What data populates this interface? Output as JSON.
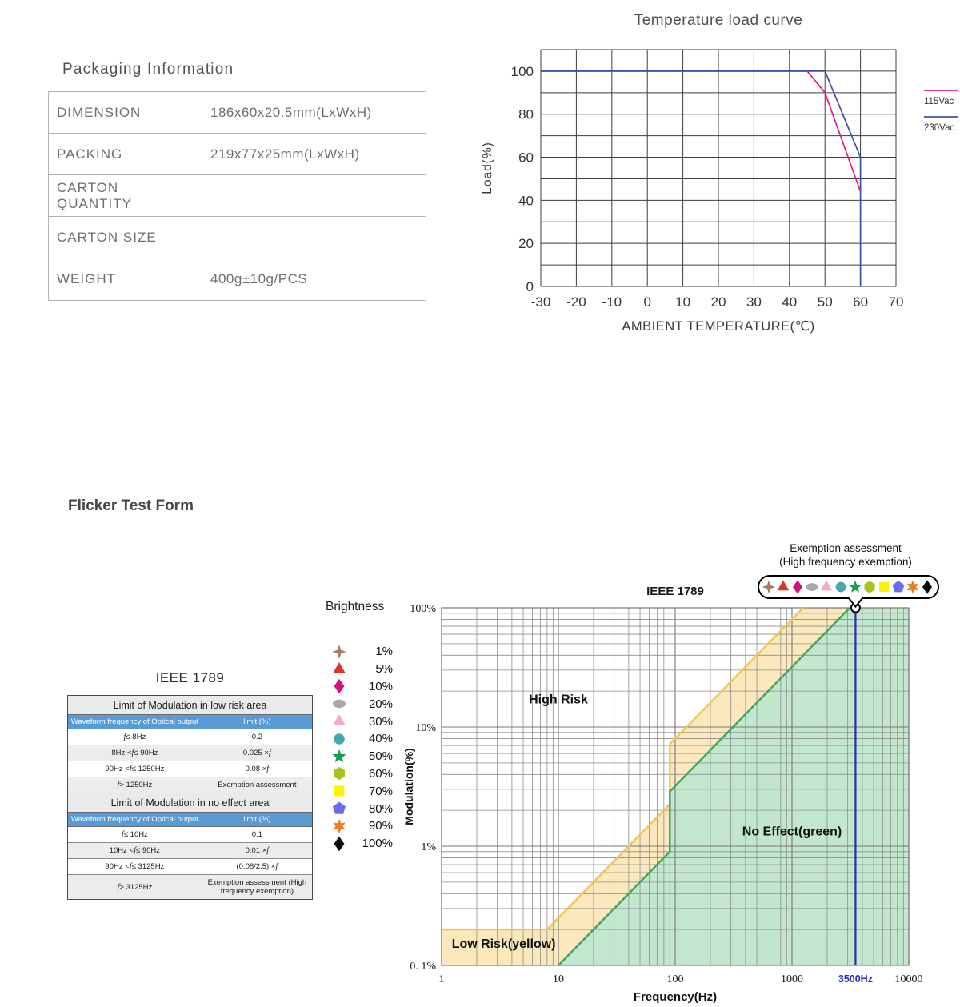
{
  "packaging": {
    "title": "Packaging Information",
    "rows": [
      {
        "label": "DIMENSION",
        "value": "186x60x20.5mm(LxWxH)"
      },
      {
        "label": "PACKING",
        "value": "219x77x25mm(LxWxH)"
      },
      {
        "label": "CARTON QUANTITY",
        "value": ""
      },
      {
        "label": "CARTON SIZE",
        "value": ""
      },
      {
        "label": "WEIGHT",
        "value": "400g±10g/PCS"
      }
    ]
  },
  "flicker": {
    "section_title": "Flicker Test Form",
    "table": {
      "title": "IEEE 1789",
      "sections": [
        {
          "header": "Limit of Modulation in low risk area",
          "col_headers": [
            "Waveform frequency of Optical output",
            "limit (%)"
          ],
          "rows": [
            [
              "f ≤ 8Hz",
              "0.2"
            ],
            [
              "8Hz < f ≤ 90Hz",
              "0.025 × f"
            ],
            [
              "90Hz < f ≤ 1250Hz",
              "0.08 × f"
            ],
            [
              "f > 1250Hz",
              "Exemption assessment"
            ]
          ]
        },
        {
          "header": "Limit of Modulation in no effect area",
          "col_headers": [
            "Waveform frequency of Optical output",
            "limit (%)"
          ],
          "rows": [
            [
              "f ≤ 10Hz",
              "0.1"
            ],
            [
              "10Hz < f ≤ 90Hz",
              "0.01 × f"
            ],
            [
              "90Hz < f ≤ 3125Hz",
              "(0.08/2.5) × f"
            ],
            [
              "f > 3125Hz",
              "Exemption assessment (High frequency exemption)"
            ]
          ]
        }
      ]
    },
    "brightness_legend": {
      "title": "Brightness",
      "items": [
        {
          "marker": "star4",
          "color": "#a87d5f",
          "label": "1%"
        },
        {
          "marker": "triangle",
          "color": "#dd3328",
          "label": "5%"
        },
        {
          "marker": "diamond",
          "color": "#d5107e",
          "label": "10%"
        },
        {
          "marker": "ellipse",
          "color": "#a9a9a9",
          "label": "20%"
        },
        {
          "marker": "triangle",
          "color": "#f9a8cc",
          "label": "30%"
        },
        {
          "marker": "circle",
          "color": "#49a5b2",
          "label": "40%"
        },
        {
          "marker": "star5",
          "color": "#12a14f",
          "label": "50%"
        },
        {
          "marker": "hexagon",
          "color": "#a5c31c",
          "label": "60%"
        },
        {
          "marker": "square",
          "color": "#fcf400",
          "label": "70%"
        },
        {
          "marker": "pentagon",
          "color": "#6a6aee",
          "label": "80%"
        },
        {
          "marker": "star6",
          "color": "#f5791d",
          "label": "90%"
        },
        {
          "marker": "diamond",
          "color": "#0a0a0a",
          "label": "100%"
        }
      ]
    },
    "exemption_callout": {
      "line1": "Exemption assessment",
      "line2": "(High frequency exemption)"
    }
  },
  "chart_data": [
    {
      "id": "temperature-load-curve",
      "type": "line",
      "title": "Temperature load curve",
      "xlabel": "AMBIENT TEMPERATURE(℃)",
      "ylabel": "Load(%)",
      "xlim": [
        -30,
        70
      ],
      "ylim": [
        0,
        110
      ],
      "x_ticks": [
        -30,
        -20,
        -10,
        0,
        10,
        20,
        30,
        40,
        50,
        60,
        70
      ],
      "y_ticks": [
        0,
        20,
        40,
        60,
        80,
        100
      ],
      "grid": true,
      "grid_step": {
        "x": 10,
        "y": 10
      },
      "legend_position": "right",
      "series": [
        {
          "name": "115Vac",
          "color": "#e8197d",
          "points": [
            [
              -30,
              100
            ],
            [
              45,
              100
            ],
            [
              50,
              90
            ],
            [
              60,
              44
            ]
          ]
        },
        {
          "name": "230Vac",
          "color": "#3d4fa8",
          "points": [
            [
              -30,
              100
            ],
            [
              50,
              100
            ],
            [
              60,
              60
            ],
            [
              60,
              0
            ]
          ]
        }
      ]
    },
    {
      "id": "flicker-ieee1789",
      "type": "area",
      "title": "IEEE 1789",
      "xlabel": "Frequency(Hz)",
      "ylabel": "Modulation(%)",
      "x_scale": "log",
      "y_scale": "log",
      "xlim": [
        1,
        10000
      ],
      "ylim": [
        0.1,
        100
      ],
      "x_ticks": [
        1,
        10,
        100,
        1000,
        10000
      ],
      "x_tick_labels": [
        "1",
        "10",
        "100",
        "1000",
        "10000"
      ],
      "y_ticks": [
        100,
        10,
        1,
        0.1
      ],
      "y_tick_labels": [
        "100%",
        "10%",
        "1%",
        "0. 1%"
      ],
      "grid": true,
      "regions": [
        {
          "name": "Low Risk(yellow)",
          "fill": "#fbe9bd",
          "line_color": "#edc65a",
          "boundary": [
            [
              1,
              0.2
            ],
            [
              8,
              0.2
            ],
            [
              90,
              2.25
            ],
            [
              90,
              7.2
            ],
            [
              1250,
              100
            ]
          ]
        },
        {
          "name": "No Effect(green)",
          "fill": "#c3e6cf",
          "line_color": "#47a45f",
          "boundary": [
            [
              10,
              0.1
            ],
            [
              90,
              0.9
            ],
            [
              90,
              2.88
            ],
            [
              3125,
              100
            ]
          ]
        }
      ],
      "annotations": [
        {
          "text": "High Risk",
          "x": 10,
          "y": 17
        },
        {
          "text": "No Effect(green)",
          "x": 1000,
          "y": 1.33
        },
        {
          "text": "Low Risk(yellow)",
          "x": 3.4,
          "y": 0.152
        }
      ],
      "vline": {
        "x": 3500,
        "label": "3500Hz",
        "color": "#2430b0"
      }
    }
  ]
}
